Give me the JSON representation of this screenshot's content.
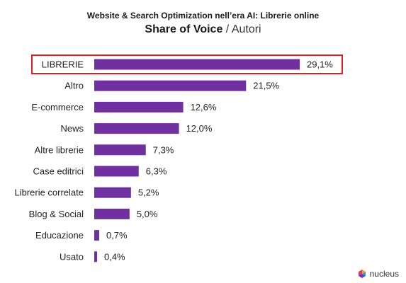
{
  "header": {
    "supertitle": "Website & Search Optimization nell’era AI: Librerie online",
    "title_bold": "Share of Voice",
    "title_rest": " / Autori"
  },
  "brand": {
    "logo_text": "nucleus"
  },
  "colors": {
    "bar": "#7030a0",
    "highlight_border": "#e02020"
  },
  "chart_data": {
    "type": "bar",
    "orientation": "horizontal",
    "categories": [
      "LIBRERIE",
      "Altro",
      "E-commerce",
      "News",
      "Altre librerie",
      "Case editrici",
      "Librerie correlate",
      "Blog & Social",
      "Educazione",
      "Usato"
    ],
    "values": [
      29.1,
      21.5,
      12.6,
      12.0,
      7.3,
      6.3,
      5.2,
      5.0,
      0.7,
      0.4
    ],
    "value_labels": [
      "29,1%",
      "21,5%",
      "12,6%",
      "12,0%",
      "7,3%",
      "6,3%",
      "5,2%",
      "5,0%",
      "0,7%",
      "0,4%"
    ],
    "highlighted_category": "LIBRERIE",
    "title": "Share of Voice / Autori",
    "xlim": [
      0,
      30
    ],
    "grid": false,
    "legend": "none"
  }
}
